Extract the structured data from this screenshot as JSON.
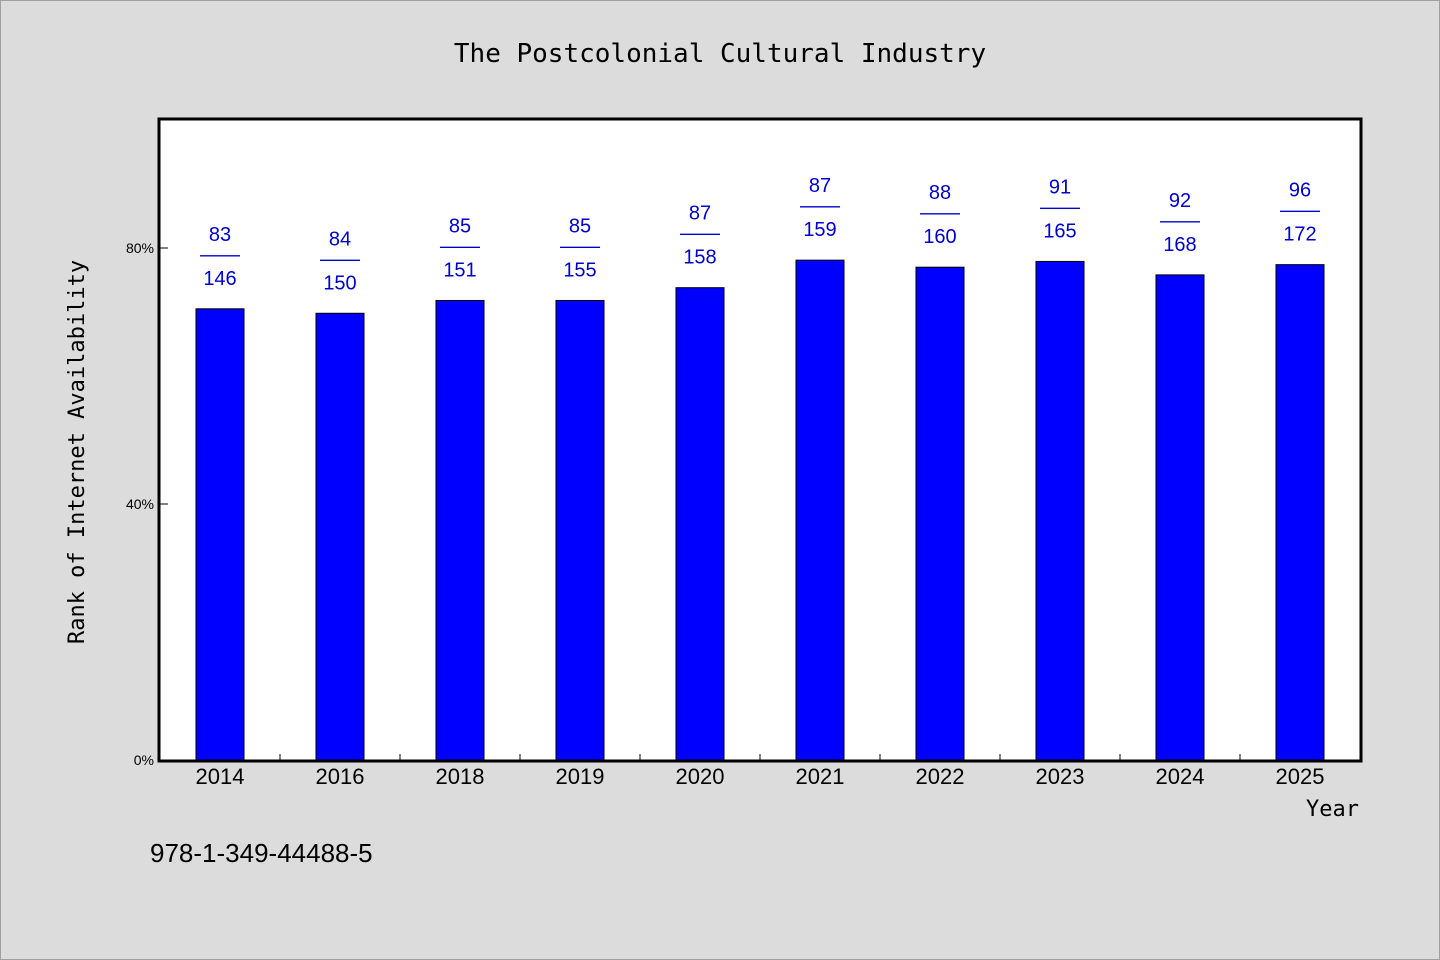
{
  "chart_data": {
    "type": "bar",
    "title": "The Postcolonial Cultural Industry",
    "xlabel": "Year",
    "ylabel": "Rank of Internet Availability",
    "categories": [
      "2014",
      "2016",
      "2018",
      "2019",
      "2020",
      "2021",
      "2022",
      "2023",
      "2024",
      "2025"
    ],
    "values": [
      70.5,
      69.8,
      71.8,
      71.8,
      73.8,
      78.1,
      77.0,
      77.9,
      75.8,
      77.4
    ],
    "value_unit": "percent",
    "ylim": [
      0,
      100
    ],
    "yticks": [
      {
        "value": 0,
        "label": "0%"
      },
      {
        "value": 40,
        "label": "40%"
      },
      {
        "value": 80,
        "label": "80%"
      }
    ],
    "annotations": [
      {
        "top": "83",
        "sep": "——",
        "bottom": "146"
      },
      {
        "top": "84",
        "sep": "——",
        "bottom": "150"
      },
      {
        "top": "85",
        "sep": "——",
        "bottom": "151"
      },
      {
        "top": "85",
        "sep": "——",
        "bottom": "155"
      },
      {
        "top": "87",
        "sep": "——",
        "bottom": "158"
      },
      {
        "top": "87",
        "sep": "——",
        "bottom": "159"
      },
      {
        "top": "88",
        "sep": "——",
        "bottom": "160"
      },
      {
        "top": "91",
        "sep": "——",
        "bottom": "165"
      },
      {
        "top": "92",
        "sep": "——",
        "bottom": "168"
      },
      {
        "top": "96",
        "sep": "——",
        "bottom": "172"
      }
    ],
    "bar_color": "#0000ff",
    "label_color": "#0000cc",
    "grid": false,
    "legend": "none"
  },
  "footer": {
    "isbn": "978-1-349-44488-5"
  },
  "colors": {
    "background": "#dcdcdc",
    "plot_background": "#ffffff"
  }
}
